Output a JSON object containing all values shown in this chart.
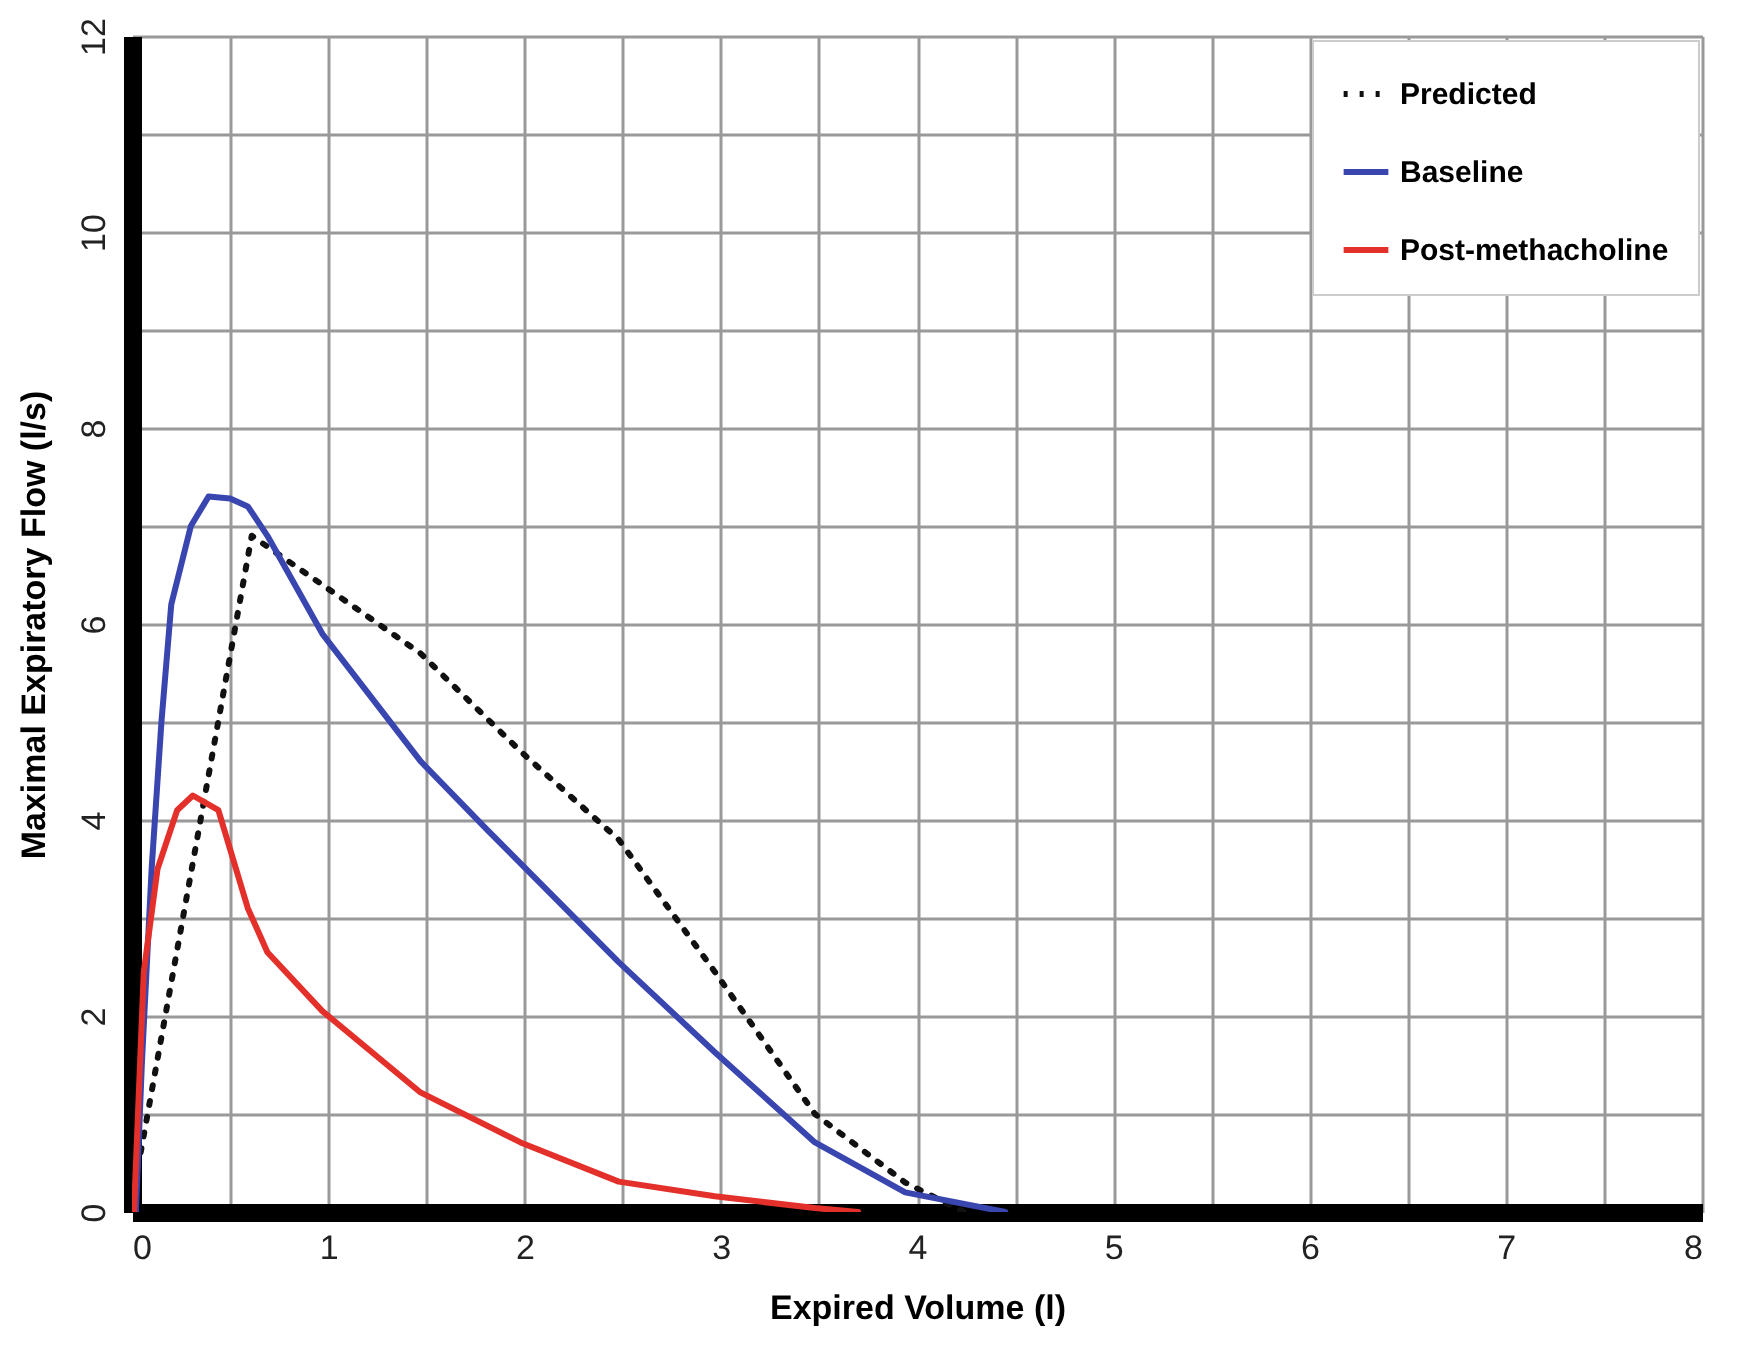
{
  "chart_data": {
    "type": "line",
    "xlabel": "Expired Volume (l)",
    "ylabel": "Maximal Expiratory Flow (l/s)",
    "xlim": [
      0,
      8
    ],
    "ylim": [
      0,
      12
    ],
    "xticks": [
      0,
      {
        "value": 0.5,
        "label": null
      },
      1,
      {
        "value": 1.5,
        "label": null
      },
      2,
      {
        "value": 2.5,
        "label": null
      },
      3,
      {
        "value": 3.5,
        "label": null
      },
      4,
      {
        "value": 4.5,
        "label": null
      },
      5,
      {
        "value": 5.5,
        "label": null
      },
      6,
      {
        "value": 6.5,
        "label": null
      },
      7,
      {
        "value": 7.5,
        "label": null
      },
      8
    ],
    "yticks": [
      0,
      {
        "value": 1,
        "label": null
      },
      2,
      {
        "value": 3,
        "label": null
      },
      4,
      {
        "value": 5,
        "label": null
      },
      6,
      {
        "value": 7,
        "label": null
      },
      8,
      {
        "value": 9,
        "label": null
      },
      10,
      {
        "value": 11,
        "label": null
      },
      12
    ],
    "grid": true,
    "legend": "top right",
    "marker": "none",
    "series": [
      {
        "name": "Predicted",
        "color": "#111111",
        "line_style": "dotted",
        "x": [
          0.03,
          0.61,
          0.97,
          1.47,
          1.98,
          2.48,
          2.97,
          3.48,
          3.94,
          4.24
        ],
        "values": [
          0.45,
          6.9,
          6.4,
          5.7,
          4.7,
          3.8,
          2.45,
          1.0,
          0.3,
          0
        ]
      },
      {
        "name": "Baseline",
        "color": "#3a46b0",
        "line_style": "solid",
        "x": [
          0.02,
          0.05,
          0.1,
          0.15,
          0.2,
          0.3,
          0.39,
          0.5,
          0.59,
          0.69,
          0.97,
          1.47,
          1.81,
          2.48,
          2.97,
          3.48,
          3.94,
          4.45
        ],
        "values": [
          0,
          1.5,
          3.5,
          5.0,
          6.2,
          7.0,
          7.3,
          7.28,
          7.2,
          6.9,
          5.9,
          4.6,
          3.9,
          2.55,
          1.63,
          0.71,
          0.2,
          0
        ]
      },
      {
        "name": "Post-methacholine",
        "color": "#e3302a",
        "line_style": "solid",
        "x": [
          0.01,
          0.06,
          0.13,
          0.23,
          0.31,
          0.44,
          0.59,
          0.69,
          0.97,
          1.47,
          1.98,
          2.48,
          2.97,
          3.48,
          3.7
        ],
        "values": [
          0,
          2.45,
          3.5,
          4.1,
          4.25,
          4.1,
          3.1,
          2.65,
          2.05,
          1.22,
          0.71,
          0.31,
          0.16,
          0.04,
          0
        ]
      }
    ]
  }
}
